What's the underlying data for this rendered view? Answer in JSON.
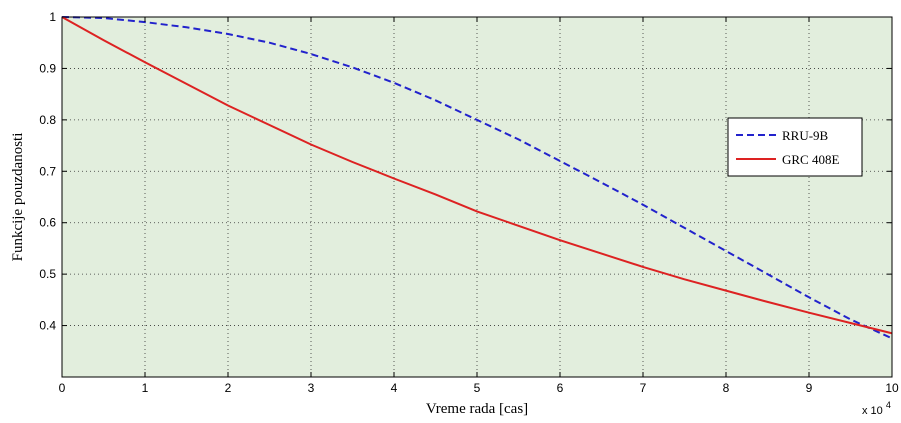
{
  "chart_data": {
    "type": "line",
    "xlabel": "Vreme rada [cas]",
    "ylabel": "Funkcije pouzdanosti",
    "x_multiplier_base": "x 10",
    "x_multiplier_exp": "4",
    "xlim": [
      0,
      10
    ],
    "ylim": [
      0.3,
      1.0
    ],
    "xticks": [
      0,
      1,
      2,
      3,
      4,
      5,
      6,
      7,
      8,
      9,
      10
    ],
    "xtick_labels": [
      "0",
      "1",
      "2",
      "3",
      "4",
      "5",
      "6",
      "7",
      "8",
      "9",
      "10"
    ],
    "yticks": [
      0.4,
      0.5,
      0.6,
      0.7,
      0.8,
      0.9,
      1.0
    ],
    "ytick_labels": [
      "0.4",
      "0.5",
      "0.6",
      "0.7",
      "0.8",
      "0.9",
      "1"
    ],
    "grid": true,
    "legend_position": "right",
    "background_color": "#e2eedd",
    "series": [
      {
        "name": "RRU-9B",
        "color": "#2222cc",
        "style": "dashed",
        "x": [
          0,
          0.5,
          1,
          1.5,
          2,
          2.5,
          3,
          3.5,
          4,
          4.5,
          5,
          5.5,
          6,
          6.5,
          7,
          7.5,
          8,
          8.5,
          9,
          9.5,
          10
        ],
        "values": [
          1.0,
          0.998,
          0.99,
          0.98,
          0.967,
          0.95,
          0.928,
          0.902,
          0.872,
          0.838,
          0.8,
          0.762,
          0.72,
          0.678,
          0.635,
          0.59,
          0.545,
          0.5,
          0.455,
          0.412,
          0.375
        ]
      },
      {
        "name": "GRC 408E",
        "color": "#dd2222",
        "style": "solid",
        "x": [
          0,
          0.5,
          1,
          1.5,
          2,
          2.5,
          3,
          3.5,
          4,
          4.5,
          5,
          5.5,
          6,
          6.5,
          7,
          7.5,
          8,
          8.5,
          9,
          9.5,
          10
        ],
        "values": [
          1.0,
          0.955,
          0.912,
          0.87,
          0.828,
          0.79,
          0.752,
          0.718,
          0.686,
          0.655,
          0.622,
          0.594,
          0.566,
          0.54,
          0.514,
          0.49,
          0.468,
          0.446,
          0.425,
          0.405,
          0.385
        ]
      }
    ]
  }
}
